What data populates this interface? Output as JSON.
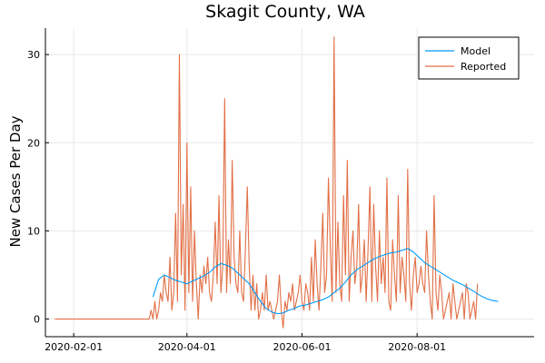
{
  "chart_data": {
    "type": "line",
    "title": "Skagit County, WA",
    "xlabel": "",
    "ylabel": "New Cases Per Day",
    "x_type": "date",
    "x_start": "2020-01-22",
    "x_end": "2020-09-27",
    "xlim": [
      "2020-01-17",
      "2020-10-02"
    ],
    "ylim": [
      -2,
      33
    ],
    "x_ticks": [
      "2020-02-01",
      "2020-04-01",
      "2020-06-01",
      "2020-08-01"
    ],
    "y_ticks": [
      0,
      10,
      20,
      30
    ],
    "grid": true,
    "legend_position": "top-right",
    "series": [
      {
        "name": "Model",
        "color": "#009AFA",
        "points": [
          [
            "2020-03-14",
            2.5
          ],
          [
            "2020-03-17",
            4.5
          ],
          [
            "2020-03-20",
            5.0
          ],
          [
            "2020-03-23",
            4.7
          ],
          [
            "2020-03-26",
            4.4
          ],
          [
            "2020-03-29",
            4.2
          ],
          [
            "2020-04-01",
            4.0
          ],
          [
            "2020-04-04",
            4.3
          ],
          [
            "2020-04-07",
            4.6
          ],
          [
            "2020-04-10",
            4.9
          ],
          [
            "2020-04-13",
            5.3
          ],
          [
            "2020-04-16",
            5.9
          ],
          [
            "2020-04-19",
            6.3
          ],
          [
            "2020-04-22",
            6.1
          ],
          [
            "2020-04-25",
            5.8
          ],
          [
            "2020-04-28",
            5.2
          ],
          [
            "2020-05-01",
            4.6
          ],
          [
            "2020-05-04",
            4.0
          ],
          [
            "2020-05-07",
            3.0
          ],
          [
            "2020-05-10",
            2.0
          ],
          [
            "2020-05-13",
            1.2
          ],
          [
            "2020-05-16",
            0.8
          ],
          [
            "2020-05-19",
            0.6
          ],
          [
            "2020-05-22",
            0.7
          ],
          [
            "2020-05-25",
            1.0
          ],
          [
            "2020-05-28",
            1.2
          ],
          [
            "2020-05-31",
            1.5
          ],
          [
            "2020-06-03",
            1.6
          ],
          [
            "2020-06-06",
            1.8
          ],
          [
            "2020-06-09",
            2.0
          ],
          [
            "2020-06-12",
            2.2
          ],
          [
            "2020-06-15",
            2.5
          ],
          [
            "2020-06-18",
            3.0
          ],
          [
            "2020-06-21",
            3.5
          ],
          [
            "2020-06-24",
            4.2
          ],
          [
            "2020-06-27",
            5.0
          ],
          [
            "2020-06-30",
            5.6
          ],
          [
            "2020-07-03",
            6.0
          ],
          [
            "2020-07-06",
            6.4
          ],
          [
            "2020-07-09",
            6.8
          ],
          [
            "2020-07-12",
            7.1
          ],
          [
            "2020-07-15",
            7.3
          ],
          [
            "2020-07-18",
            7.5
          ],
          [
            "2020-07-21",
            7.6
          ],
          [
            "2020-07-24",
            7.8
          ],
          [
            "2020-07-27",
            8.0
          ],
          [
            "2020-07-30",
            7.6
          ],
          [
            "2020-08-02",
            7.0
          ],
          [
            "2020-08-05",
            6.4
          ],
          [
            "2020-08-08",
            6.0
          ],
          [
            "2020-08-11",
            5.6
          ],
          [
            "2020-08-14",
            5.2
          ],
          [
            "2020-08-17",
            4.8
          ],
          [
            "2020-08-20",
            4.4
          ],
          [
            "2020-08-23",
            4.1
          ],
          [
            "2020-08-26",
            3.8
          ],
          [
            "2020-08-29",
            3.4
          ],
          [
            "2020-09-01",
            3.0
          ],
          [
            "2020-09-04",
            2.6
          ],
          [
            "2020-09-07",
            2.3
          ],
          [
            "2020-09-10",
            2.1
          ],
          [
            "2020-09-13",
            2.0
          ]
        ]
      },
      {
        "name": "Reported",
        "color": "#E26F46",
        "values": [
          0,
          0,
          0,
          0,
          0,
          0,
          0,
          0,
          0,
          0,
          0,
          0,
          0,
          0,
          0,
          0,
          0,
          0,
          0,
          0,
          0,
          0,
          0,
          0,
          0,
          0,
          0,
          0,
          0,
          0,
          0,
          0,
          0,
          0,
          0,
          0,
          0,
          0,
          0,
          0,
          0,
          0,
          0,
          0,
          0,
          0,
          0,
          0,
          0,
          0,
          0,
          1,
          0,
          2,
          0,
          1,
          3,
          2,
          5,
          3,
          2,
          7,
          1,
          3,
          12,
          2,
          30,
          5,
          13,
          1,
          20,
          3,
          15,
          2,
          10,
          4,
          0,
          5,
          3,
          6,
          4,
          7,
          3,
          2,
          5,
          11,
          4,
          14,
          3,
          6,
          25,
          3,
          9,
          4,
          18,
          7,
          4,
          3,
          10,
          3,
          2,
          8,
          15,
          6,
          1,
          5,
          1,
          4,
          0,
          1,
          3,
          1,
          5,
          1,
          2,
          1,
          0,
          1,
          2,
          5,
          1,
          -1,
          2,
          1,
          3,
          2,
          4,
          1,
          2,
          3,
          5,
          2,
          1,
          4,
          3,
          1,
          7,
          2,
          9,
          4,
          1,
          6,
          12,
          3,
          5,
          16,
          8,
          2,
          32,
          3,
          11,
          4,
          2,
          14,
          5,
          18,
          2,
          7,
          10,
          4,
          6,
          13,
          3,
          5,
          9,
          2,
          8,
          15,
          2,
          13,
          6,
          2,
          10,
          4,
          7,
          3,
          16,
          2,
          1,
          9,
          5,
          2,
          14,
          3,
          7,
          5,
          2,
          17,
          4,
          1,
          5,
          7,
          3,
          4,
          6,
          4,
          3,
          10,
          5,
          2,
          0,
          14,
          3,
          1,
          5,
          3,
          0,
          1,
          2,
          3,
          0,
          4,
          2,
          0,
          1,
          2,
          3,
          0,
          4,
          3,
          0,
          1,
          2,
          0,
          4
        ]
      }
    ]
  }
}
